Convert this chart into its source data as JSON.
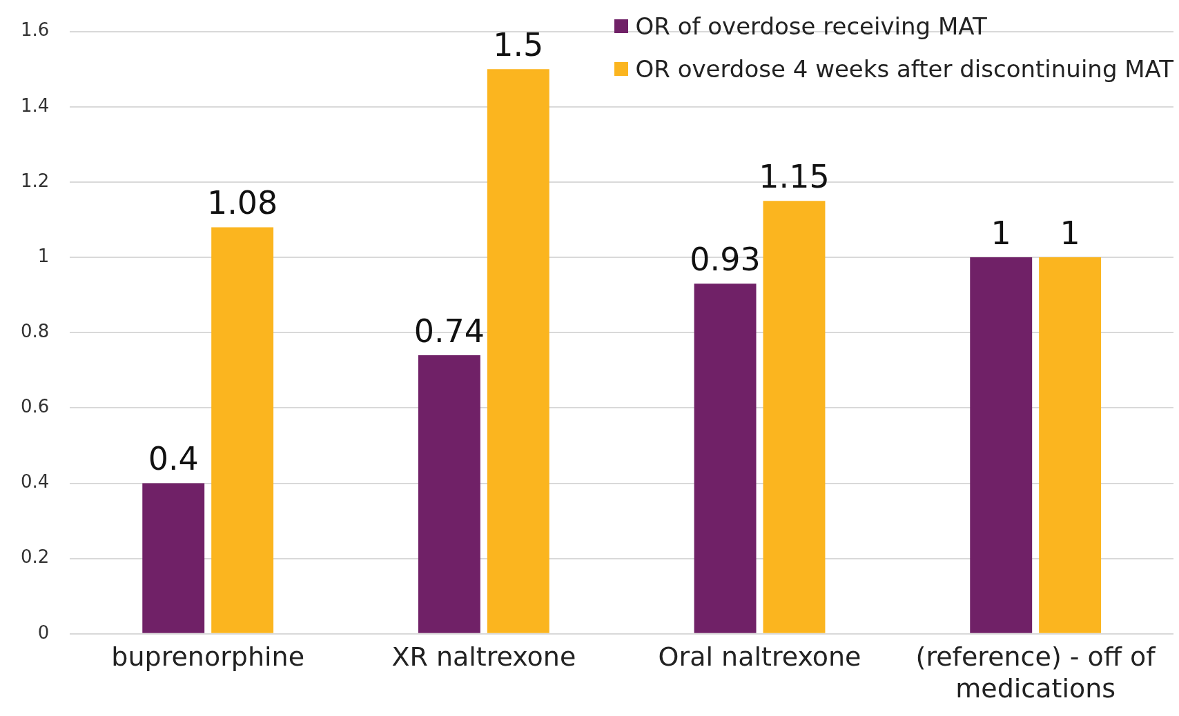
{
  "chart_data": {
    "type": "bar",
    "categories": [
      "buprenorphine",
      "XR naltrexone",
      "Oral naltrexone",
      "(reference) - off of medications"
    ],
    "series": [
      {
        "name": "OR of overdose receiving MAT",
        "color": "#702167",
        "values": [
          0.4,
          0.74,
          0.93,
          1
        ]
      },
      {
        "name": "OR overdose 4 weeks after discontinuing MAT",
        "color": "#fbb51f",
        "values": [
          1.08,
          1.5,
          1.15,
          1
        ]
      }
    ],
    "ylim": [
      0,
      1.6
    ],
    "yticks": [
      0,
      0.2,
      0.4,
      0.6,
      0.8,
      1,
      1.2,
      1.4,
      1.6
    ],
    "grid": "y",
    "legend": "top right",
    "data_labels": true
  }
}
